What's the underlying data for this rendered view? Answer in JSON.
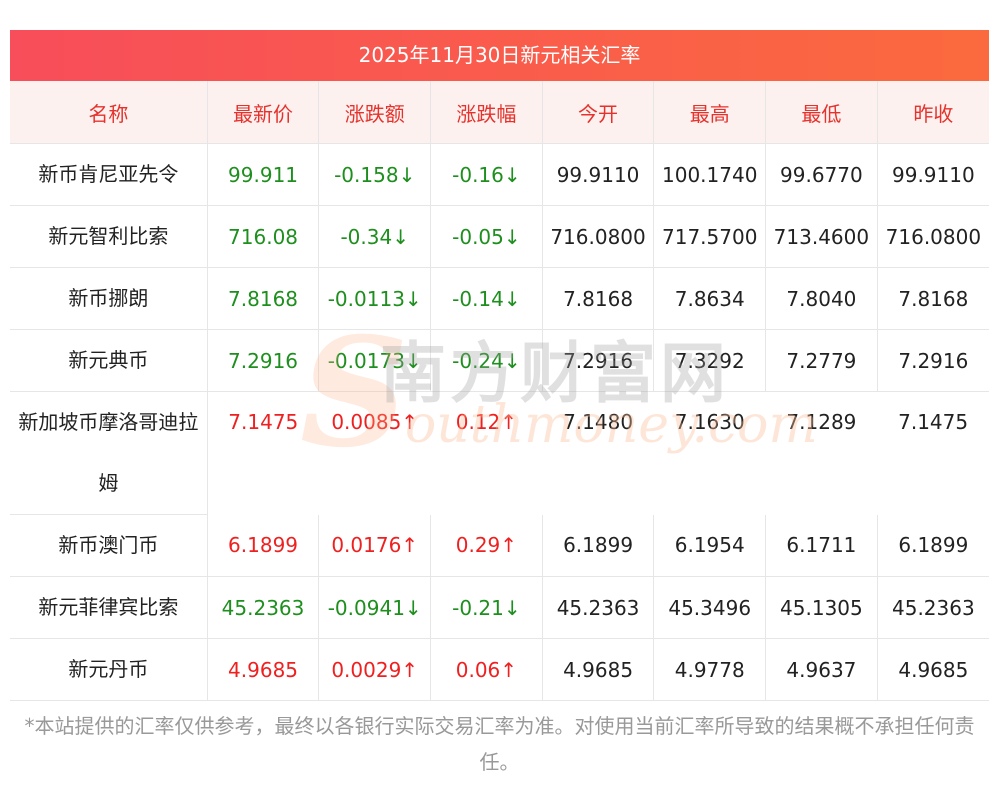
{
  "title": "2025年11月30日新元相关汇率",
  "headers": [
    "名称",
    "最新价",
    "涨跌额",
    "涨跌幅",
    "今开",
    "最高",
    "最低",
    "昨收"
  ],
  "rows": [
    {
      "name": "新币肯尼亚先令",
      "latest": "99.911",
      "change": "-0.158↓",
      "change_pct": "-0.16↓",
      "open": "99.9110",
      "high": "100.1740",
      "low": "99.6770",
      "prev_close": "99.9110",
      "direction": "down"
    },
    {
      "name": "新元智利比索",
      "latest": "716.08",
      "change": "-0.34↓",
      "change_pct": "-0.05↓",
      "open": "716.0800",
      "high": "717.5700",
      "low": "713.4600",
      "prev_close": "716.0800",
      "direction": "down"
    },
    {
      "name": "新币挪朗",
      "latest": "7.8168",
      "change": "-0.0113↓",
      "change_pct": "-0.14↓",
      "open": "7.8168",
      "high": "7.8634",
      "low": "7.8040",
      "prev_close": "7.8168",
      "direction": "down"
    },
    {
      "name": "新元典币",
      "latest": "7.2916",
      "change": "-0.0173↓",
      "change_pct": "-0.24↓",
      "open": "7.2916",
      "high": "7.3292",
      "low": "7.2779",
      "prev_close": "7.2916",
      "direction": "down"
    },
    {
      "name": "新加坡币摩洛哥迪拉姆",
      "latest": "7.1475",
      "change": "0.0085↑",
      "change_pct": "0.12↑",
      "open": "7.1480",
      "high": "7.1630",
      "low": "7.1289",
      "prev_close": "7.1475",
      "direction": "up"
    },
    {
      "name": "新币澳门币",
      "latest": "6.1899",
      "change": "0.0176↑",
      "change_pct": "0.29↑",
      "open": "6.1899",
      "high": "6.1954",
      "low": "6.1711",
      "prev_close": "6.1899",
      "direction": "up"
    },
    {
      "name": "新元菲律宾比索",
      "latest": "45.2363",
      "change": "-0.0941↓",
      "change_pct": "-0.21↓",
      "open": "45.2363",
      "high": "45.3496",
      "low": "45.1305",
      "prev_close": "45.2363",
      "direction": "down"
    },
    {
      "name": "新元丹币",
      "latest": "4.9685",
      "change": "0.0029↑",
      "change_pct": "0.06↑",
      "open": "4.9685",
      "high": "4.9778",
      "low": "4.9637",
      "prev_close": "4.9685",
      "direction": "up"
    }
  ],
  "watermark": {
    "cn": "南方财富网",
    "en": "outhmoney.com",
    "letter": "S"
  },
  "disclaimer": "*本站提供的汇率仅供参考，最终以各银行实际交易汇率为准。对使用当前汇率所导致的结果概不承担任何责任。",
  "colors": {
    "up": "#ef2020",
    "down": "#1e8f1e",
    "header_text": "#e5322d",
    "title_gradient_start": "#f84d5a",
    "title_gradient_end": "#fb6a3e"
  }
}
